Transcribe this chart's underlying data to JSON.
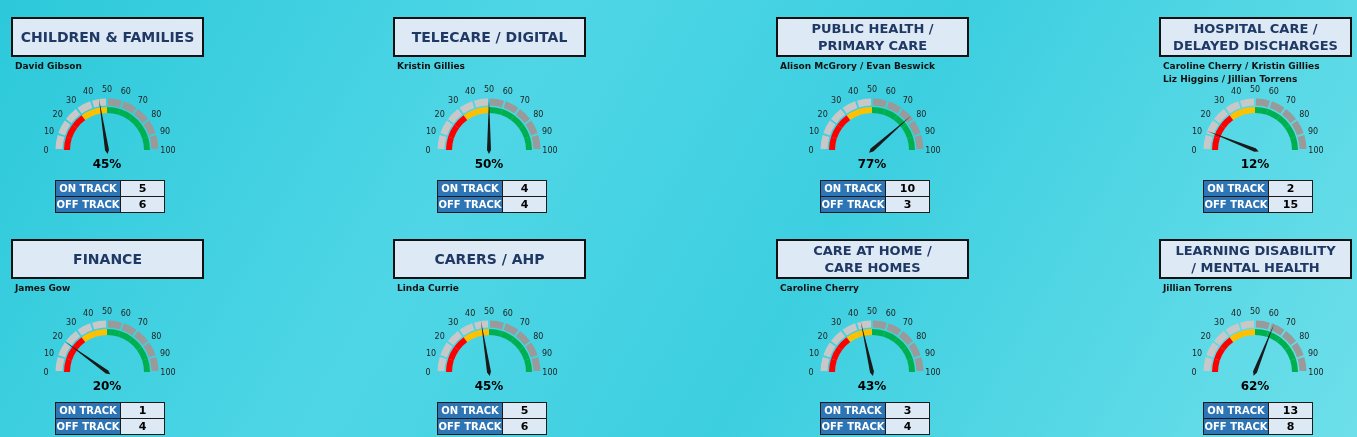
{
  "chart_data": [
    {
      "type": "other",
      "title": "CHILDREN & FAMILIES",
      "subtitle": "David Gibson",
      "values": [
        45
      ],
      "value_labels": [
        "45%"
      ],
      "annotations": [
        "0",
        "10",
        "20",
        "30",
        "40",
        "50",
        "60",
        "70",
        "80",
        "90",
        "100"
      ]
    },
    {
      "type": "other",
      "categories": [
        "ON TRACK",
        "OFF TRACK"
      ],
      "values": [
        5,
        6
      ],
      "data_labels": true
    },
    {
      "type": "other",
      "title": "TELECARE / DIGITAL",
      "subtitle": "Kristin Gillies",
      "values": [
        50
      ],
      "value_labels": [
        "50%"
      ],
      "annotations": [
        "0",
        "10",
        "20",
        "30",
        "40",
        "50",
        "60",
        "70",
        "80",
        "90",
        "100"
      ]
    },
    {
      "type": "other",
      "categories": [
        "ON TRACK",
        "OFF TRACK"
      ],
      "values": [
        4,
        4
      ],
      "data_labels": true
    },
    {
      "type": "other",
      "title": "PUBLIC HEALTH /\nPRIMARY CARE",
      "subtitle": "Alison McGrory / Evan Beswick",
      "values": [
        77
      ],
      "value_labels": [
        "77%"
      ],
      "annotations": [
        "0",
        "10",
        "20",
        "30",
        "40",
        "50",
        "60",
        "70",
        "80",
        "90",
        "100"
      ]
    },
    {
      "type": "other",
      "categories": [
        "ON TRACK",
        "OFF TRACK"
      ],
      "values": [
        10,
        3
      ],
      "data_labels": true
    },
    {
      "type": "other",
      "title": "HOSPITAL CARE /\nDELAYED DISCHARGES",
      "subtitle": "Caroline Cherry / Kristin Gillies\nLiz Higgins / Jillian Torrens",
      "values": [
        12
      ],
      "value_labels": [
        "12%"
      ],
      "annotations": [
        "0",
        "10",
        "20",
        "30",
        "40",
        "50",
        "60",
        "70",
        "80",
        "90",
        "100"
      ]
    },
    {
      "type": "other",
      "categories": [
        "ON TRACK",
        "OFF TRACK"
      ],
      "values": [
        2,
        15
      ],
      "data_labels": true
    },
    {
      "type": "other",
      "title": "FINANCE",
      "subtitle": "James Gow",
      "values": [
        20
      ],
      "value_labels": [
        "20%"
      ],
      "annotations": [
        "0",
        "10",
        "20",
        "30",
        "40",
        "50",
        "60",
        "70",
        "80",
        "90",
        "100"
      ]
    },
    {
      "type": "other",
      "categories": [
        "ON TRACK",
        "OFF TRACK"
      ],
      "values": [
        1,
        4
      ],
      "data_labels": true
    },
    {
      "type": "other",
      "title": "CARERS / AHP",
      "subtitle": "Linda Currie",
      "values": [
        45
      ],
      "value_labels": [
        "45%"
      ],
      "annotations": [
        "0",
        "10",
        "20",
        "30",
        "40",
        "50",
        "60",
        "70",
        "80",
        "90",
        "100"
      ]
    },
    {
      "type": "other",
      "categories": [
        "ON TRACK",
        "OFF TRACK"
      ],
      "values": [
        5,
        6
      ],
      "data_labels": true
    },
    {
      "type": "other",
      "title": "CARE AT HOME /\nCARE HOMES",
      "subtitle": "Caroline Cherry",
      "values": [
        43
      ],
      "value_labels": [
        "43%"
      ],
      "annotations": [
        "0",
        "10",
        "20",
        "30",
        "40",
        "50",
        "60",
        "70",
        "80",
        "90",
        "100"
      ]
    },
    {
      "type": "other",
      "categories": [
        "ON TRACK",
        "OFF TRACK"
      ],
      "values": [
        3,
        4
      ],
      "data_labels": true
    },
    {
      "type": "other",
      "title": "LEARNING DISABILITY\n/ MENTAL HEALTH",
      "subtitle": "Jillian Torrens",
      "values": [
        62
      ],
      "value_labels": [
        "62%"
      ],
      "annotations": [
        "0",
        "10",
        "20",
        "30",
        "40",
        "50",
        "60",
        "70",
        "80",
        "90",
        "100"
      ]
    },
    {
      "type": "other",
      "categories": [
        "ON TRACK",
        "OFF TRACK"
      ],
      "values": [
        13,
        8
      ],
      "data_labels": true
    }
  ]
}
